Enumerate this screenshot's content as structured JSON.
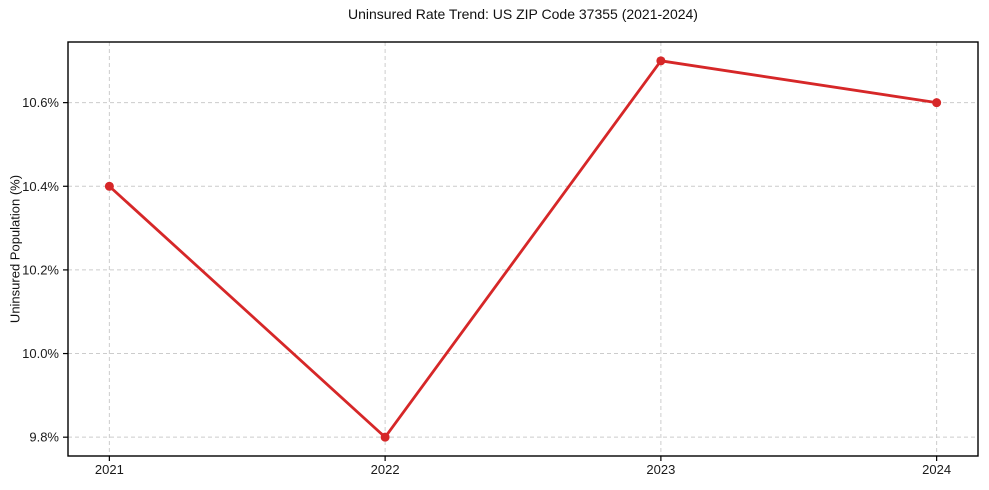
{
  "chart_data": {
    "type": "line",
    "title": "Uninsured Rate Trend: US ZIP Code 37355 (2021-2024)",
    "xlabel": "",
    "ylabel": "Uninsured Population (%)",
    "x": [
      2021,
      2022,
      2023,
      2024
    ],
    "x_tick_labels": [
      "2021",
      "2022",
      "2023",
      "2024"
    ],
    "y_tick_values": [
      9.8,
      10.0,
      10.2,
      10.4,
      10.6
    ],
    "y_tick_labels": [
      "9.8%",
      "10.0%",
      "10.2%",
      "10.4%",
      "10.6%"
    ],
    "series": [
      {
        "name": "Uninsured rate",
        "values": [
          10.4,
          9.8,
          10.7,
          10.6
        ]
      }
    ],
    "xlim": [
      2020.85,
      2024.15
    ],
    "ylim": [
      9.755,
      10.745
    ],
    "grid": true,
    "grid_style": "dashed",
    "legend": "none",
    "line_color": "#d62728",
    "grid_color": "#cccccc",
    "axis_color": "#000000",
    "tick_label_color": "#1a1a1a",
    "marker": "circle"
  }
}
